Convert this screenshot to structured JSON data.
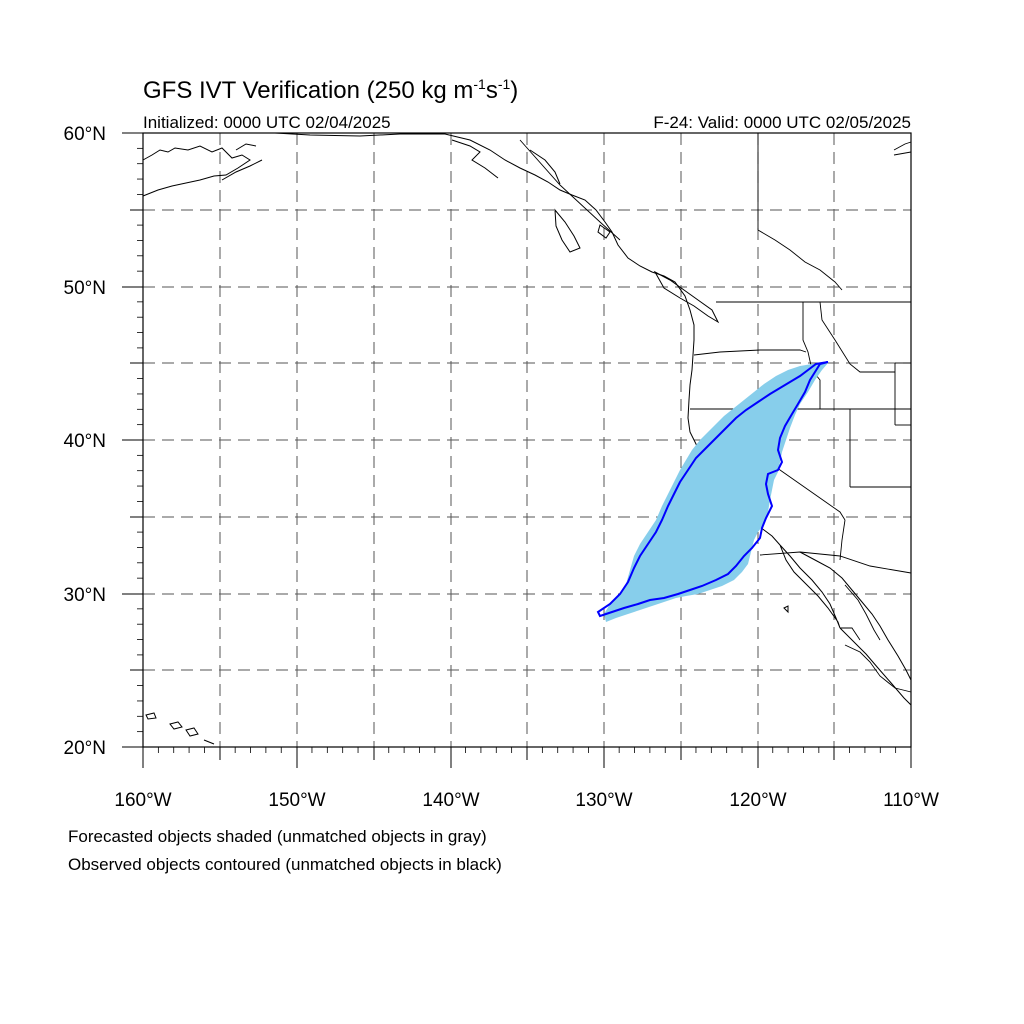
{
  "title": {
    "main": "GFS IVT Verification (250 kg m",
    "exp1": "-1",
    "mid": "s",
    "exp2": "-1",
    "close": ")"
  },
  "initialized": "Initialized: 0000 UTC 02/04/2025",
  "valid": "F-24: Valid: 0000 UTC 02/05/2025",
  "latitude_labels": [
    "60°N",
    "50°N",
    "40°N",
    "30°N",
    "20°N"
  ],
  "longitude_labels": [
    "160°W",
    "150°W",
    "140°W",
    "130°W",
    "120°W",
    "110°W"
  ],
  "footnotes": [
    "Forecasted objects shaded (unmatched objects in gray)",
    "Observed objects contoured (unmatched objects in black)"
  ],
  "colors": {
    "forecast_fill": "#87ceeb",
    "observed_contour": "#0000ff",
    "coastline": "#000000",
    "grid": "#555555"
  },
  "map_extent": {
    "lon_range": [
      "160°W",
      "110°W"
    ],
    "lat_range": [
      "20°N",
      "60°N"
    ],
    "grid_spacing_deg": 5
  }
}
